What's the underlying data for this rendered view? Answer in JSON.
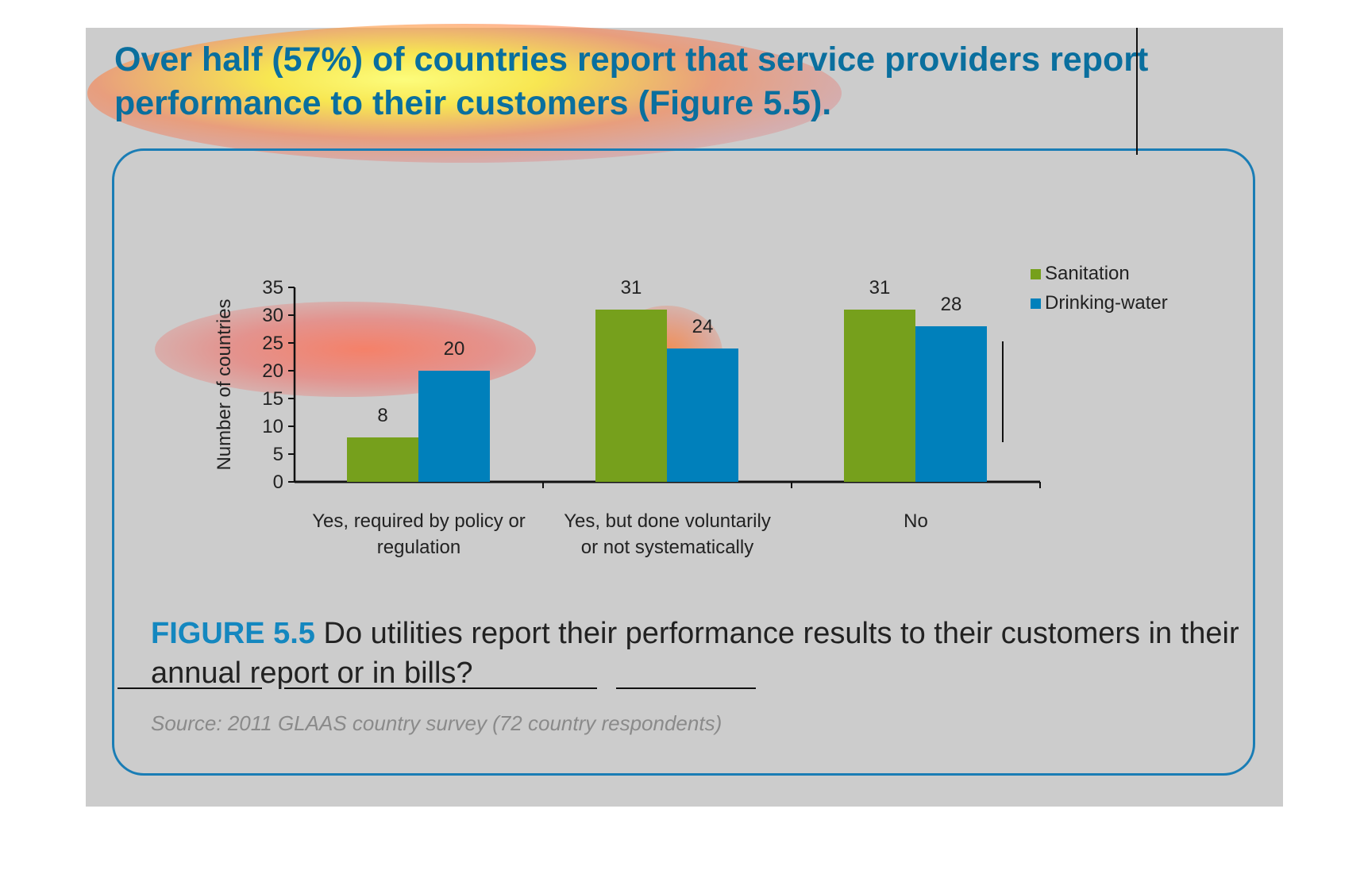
{
  "headline": "Over half (57%) of countries report that service providers report performance to their customers (Figure 5.5).",
  "figure": {
    "label": "FIGURE 5.5",
    "caption": "Do utilities report their performance results to their customers in their annual report or in bills?",
    "source": "Source: 2011 GLAAS country survey (72 country respondents)"
  },
  "colors": {
    "sanitation": "#76a01c",
    "drinking_water": "#0080bb",
    "frame": "#1a7db5",
    "heading": "#0a6f9e"
  },
  "chart_data": {
    "type": "bar",
    "ylabel": "Number of countries",
    "ylim": [
      0,
      35
    ],
    "yticks": [
      0,
      5,
      10,
      15,
      20,
      25,
      30,
      35
    ],
    "categories": [
      [
        "Yes, required by policy or",
        "regulation"
      ],
      [
        "Yes, but done voluntarily",
        "or not systematically"
      ],
      [
        "No"
      ]
    ],
    "series": [
      {
        "name": "Sanitation",
        "color": "#76a01c",
        "values": [
          8,
          31,
          31
        ]
      },
      {
        "name": "Drinking-water",
        "color": "#0080bb",
        "values": [
          20,
          24,
          28
        ]
      }
    ],
    "legend": "top-right"
  }
}
